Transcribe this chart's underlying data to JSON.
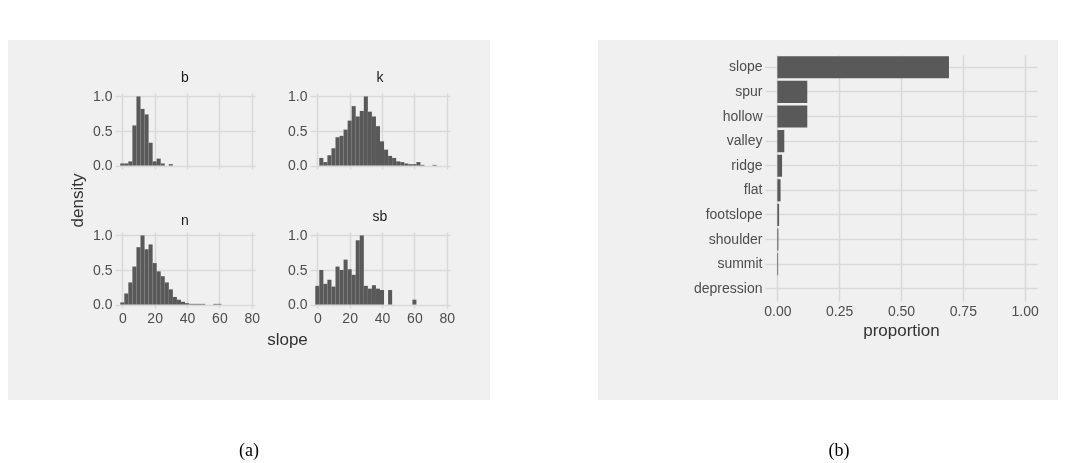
{
  "chart_data": [
    {
      "type": "histogram",
      "title": "b",
      "bins": [
        -1.25,
        1.25,
        3.75,
        6.25,
        8.75,
        11.25,
        13.75,
        16.25,
        18.75,
        21.25,
        23.75,
        26.25,
        28.75,
        31.25
      ],
      "values": [
        0.03,
        0.03,
        0.06,
        0.58,
        1.0,
        0.82,
        0.74,
        0.33,
        0.06,
        0.1,
        0.03,
        0,
        0.02
      ],
      "color": "#595959",
      "xlim": [
        -4.5,
        82
      ],
      "ylim": [
        -0.05,
        1.05
      ],
      "xticks": [
        0,
        20,
        40,
        60,
        80
      ],
      "yticks": [
        {
          "value": 0,
          "label": "0.0"
        },
        {
          "value": 0.5,
          "label": "0.5"
        },
        {
          "value": 1,
          "label": "1.0"
        }
      ],
      "grid": true,
      "tick_labels": "y",
      "annotations": [
        "(a)"
      ]
    },
    {
      "type": "histogram",
      "title": "k",
      "bins": [
        1.25,
        3.75,
        6.25,
        8.75,
        11.25,
        13.75,
        16.25,
        18.75,
        21.25,
        23.75,
        26.25,
        28.75,
        31.25,
        33.75,
        36.25,
        38.75,
        41.25,
        43.75,
        46.25,
        48.75,
        51.25,
        53.75,
        56.25,
        58.75,
        61.25,
        63.75,
        66.25,
        68.75,
        71.25,
        73.75
      ],
      "values": [
        0.11,
        0.05,
        0.15,
        0.25,
        0.41,
        0.43,
        0.52,
        0.65,
        0.86,
        0.71,
        0.79,
        1.0,
        0.78,
        0.71,
        0.57,
        0.35,
        0.23,
        0.14,
        0.11,
        0.06,
        0.05,
        0.03,
        0.02,
        0.02,
        0.05,
        0.01,
        0,
        0,
        0.01
      ],
      "color": "#595959",
      "xlim": [
        -4.5,
        82
      ],
      "ylim": [
        -0.05,
        1.05
      ],
      "xticks": [
        0,
        20,
        40,
        60,
        80
      ],
      "yticks": [
        {
          "value": 0,
          "label": "0.0"
        },
        {
          "value": 0.5,
          "label": "0.5"
        },
        {
          "value": 1,
          "label": "1.0"
        }
      ],
      "grid": true,
      "tick_labels": "y"
    },
    {
      "type": "histogram",
      "title": "n",
      "ylabel": "density",
      "bins": [
        -1.25,
        1.25,
        3.75,
        6.25,
        8.75,
        11.25,
        13.75,
        16.25,
        18.75,
        21.25,
        23.75,
        26.25,
        28.75,
        31.25,
        33.75,
        36.25,
        38.75,
        41.25,
        43.75,
        46.25,
        48.75,
        51.25,
        53.75,
        56.25,
        58.75,
        61.25
      ],
      "values": [
        0.03,
        0.16,
        0.32,
        0.55,
        0.83,
        1.0,
        0.8,
        0.87,
        0.6,
        0.48,
        0.41,
        0.32,
        0.22,
        0.11,
        0.07,
        0.04,
        0.02,
        0.01,
        0.01,
        0.01,
        0.01,
        0,
        0,
        0.01,
        0.01
      ],
      "color": "#595959",
      "xlim": [
        -4.5,
        82
      ],
      "ylim": [
        -0.05,
        1.05
      ],
      "xticks": [
        0,
        20,
        40,
        60,
        80
      ],
      "yticks": [
        {
          "value": 0,
          "label": "0.0"
        },
        {
          "value": 0.5,
          "label": "0.5"
        },
        {
          "value": 1,
          "label": "1.0"
        }
      ],
      "grid": true
    },
    {
      "type": "histogram",
      "title": "sb",
      "xlabel": "slope",
      "bins": [
        -1.25,
        1.25,
        3.75,
        6.25,
        8.75,
        11.25,
        13.75,
        16.25,
        18.75,
        21.25,
        23.75,
        26.25,
        28.75,
        31.25,
        33.75,
        36.25,
        38.75,
        41.25,
        43.75,
        46.25,
        48.75,
        51.25,
        53.75,
        56.25,
        58.75,
        61.25
      ],
      "values": [
        0.27,
        0.5,
        0.3,
        0.36,
        0.26,
        0.55,
        0.5,
        0.65,
        0.51,
        0.43,
        0.93,
        1.0,
        0.27,
        0.23,
        0.28,
        0.23,
        0.21,
        0,
        0.21,
        0,
        0,
        0,
        0,
        0,
        0.07
      ],
      "color": "#595959",
      "xlim": [
        -4.5,
        82
      ],
      "ylim": [
        -0.05,
        1.05
      ],
      "xticks": [
        0,
        20,
        40,
        60,
        80
      ],
      "yticks": [
        {
          "value": 0,
          "label": "0.0"
        },
        {
          "value": 0.5,
          "label": "0.5"
        },
        {
          "value": 1,
          "label": "1.0"
        }
      ],
      "grid": true
    },
    {
      "type": "bar",
      "orientation": "horizontal",
      "xlabel": "proportion",
      "categories": [
        "slope",
        "spur",
        "hollow",
        "valley",
        "ridge",
        "flat",
        "footslope",
        "shoulder",
        "summit",
        "depression"
      ],
      "values": [
        0.694,
        0.121,
        0.121,
        0.028,
        0.019,
        0.013,
        0.007,
        0.004,
        0.003,
        0
      ],
      "color": "#595959",
      "xlim": [
        -0.05,
        1.05
      ],
      "xticks": [
        {
          "value": 0,
          "label": "0.00"
        },
        {
          "value": 0.25,
          "label": "0.25"
        },
        {
          "value": 0.5,
          "label": "0.50"
        },
        {
          "value": 0.75,
          "label": "0.75"
        },
        {
          "value": 1,
          "label": "1.00"
        }
      ],
      "grid": true,
      "annotations": [
        "(b)"
      ]
    }
  ]
}
